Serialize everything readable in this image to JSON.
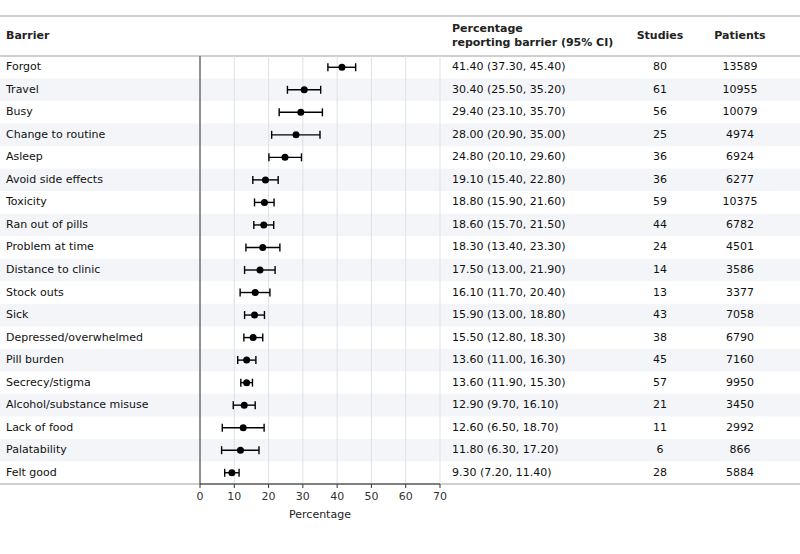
{
  "chart_data": {
    "type": "forest",
    "orientation": "horizontal",
    "categories": [
      "Forgot",
      "Travel",
      "Busy",
      "Change to routine",
      "Asleep",
      "Avoid side effects",
      "Toxicity",
      "Ran out of pills",
      "Problem at time",
      "Distance to clinic",
      "Stock outs",
      "Sick",
      "Depressed/overwhelmed",
      "Pill burden",
      "Secrecy/stigma",
      "Alcohol/substance misuse",
      "Lack of food",
      "Palatability",
      "Felt good"
    ],
    "values": [
      41.4,
      30.4,
      29.4,
      28.0,
      24.8,
      19.1,
      18.8,
      18.6,
      18.3,
      17.5,
      16.1,
      15.9,
      15.5,
      13.6,
      13.6,
      12.9,
      12.6,
      11.8,
      9.3
    ],
    "ci_low": [
      37.3,
      25.5,
      23.1,
      20.9,
      20.1,
      15.4,
      15.9,
      15.7,
      13.4,
      13.0,
      11.7,
      13.0,
      12.8,
      11.0,
      11.9,
      9.7,
      6.5,
      6.3,
      7.2
    ],
    "ci_high": [
      45.4,
      35.2,
      35.7,
      35.0,
      29.6,
      22.8,
      21.6,
      21.5,
      23.3,
      21.9,
      20.4,
      18.8,
      18.3,
      16.3,
      15.3,
      16.1,
      18.7,
      17.2,
      11.4
    ],
    "ci_labels": [
      "41.40 (37.30, 45.40)",
      "30.40 (25.50, 35.20)",
      "29.40 (23.10, 35.70)",
      "28.00 (20.90, 35.00)",
      "24.80 (20.10, 29.60)",
      "19.10 (15.40, 22.80)",
      "18.80 (15.90, 21.60)",
      "18.60 (15.70, 21.50)",
      "18.30 (13.40, 23.30)",
      "17.50 (13.00, 21.90)",
      "16.10 (11.70, 20.40)",
      "15.90 (13.00, 18.80)",
      "15.50 (12.80, 18.30)",
      "13.60 (11.00, 16.30)",
      "13.60 (11.90, 15.30)",
      "12.90 (9.70, 16.10)",
      "12.60 (6.50, 18.70)",
      "11.80 (6.30, 17.20)",
      "9.30 (7.20, 11.40)"
    ],
    "studies": [
      80,
      61,
      56,
      25,
      36,
      36,
      59,
      44,
      24,
      14,
      13,
      43,
      38,
      45,
      57,
      21,
      11,
      6,
      28
    ],
    "patients": [
      13589,
      10955,
      10079,
      4974,
      6924,
      6277,
      10375,
      6782,
      4501,
      3586,
      3377,
      7058,
      6790,
      7160,
      9950,
      3450,
      2992,
      866,
      5884
    ],
    "column_headers": [
      "Barrier",
      "Percentage\nreporting barrier (95% CI)",
      "Studies",
      "Patients"
    ],
    "x_label": "Percentage",
    "xlim": [
      0,
      70
    ],
    "xticks": [
      0,
      10,
      20,
      30,
      40,
      50,
      60,
      70
    ],
    "color": "#000000"
  }
}
